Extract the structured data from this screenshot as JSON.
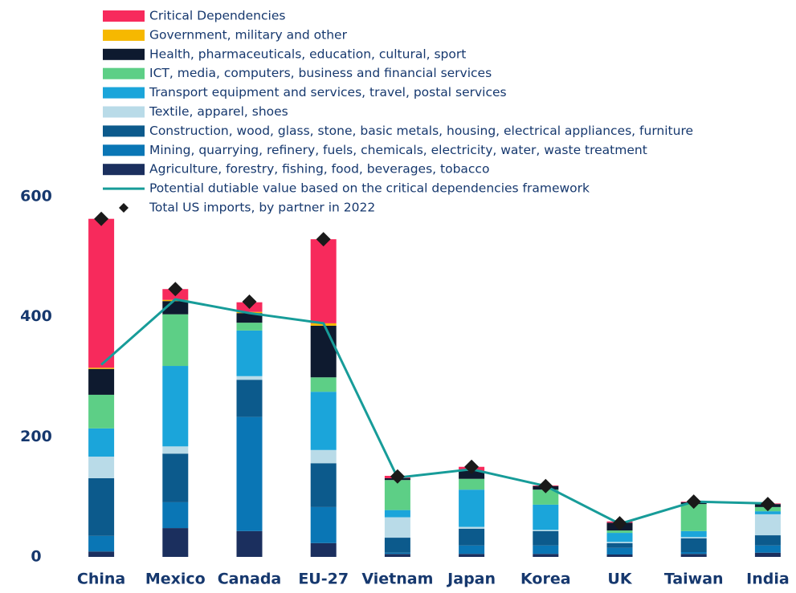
{
  "chart_data": {
    "type": "bar",
    "stacked": true,
    "categories": [
      "China",
      "Mexico",
      "Canada",
      "EU-27",
      "Vietnam",
      "Japan",
      "Korea",
      "UK",
      "Taiwan",
      "India"
    ],
    "series": [
      {
        "name": "Agriculture, forestry, fishing, food, beverages, tobacco",
        "color": "#1b2f5e",
        "values": [
          9,
          48,
          43,
          23,
          5,
          5,
          5,
          4,
          5,
          7
        ]
      },
      {
        "name": "Mining, quarrying, refinery, fuels, chemicals, electricity, water, waste treatment",
        "color": "#0a76b5",
        "values": [
          26,
          43,
          190,
          60,
          2,
          14,
          14,
          11,
          3,
          12
        ]
      },
      {
        "name": "Construction, wood, glass, stone, basic metals, housing, electrical appliances, furniture",
        "color": "#0c5a8c",
        "values": [
          96,
          81,
          62,
          73,
          25,
          28,
          24,
          8,
          23,
          17
        ]
      },
      {
        "name": "Textile, apparel, shoes",
        "color": "#b9dbe8",
        "values": [
          36,
          12,
          6,
          22,
          34,
          3,
          2,
          2,
          2,
          35
        ]
      },
      {
        "name": "Transport equipment and services, travel, postal services",
        "color": "#1ba5da",
        "values": [
          47,
          134,
          76,
          97,
          12,
          62,
          42,
          15,
          10,
          5
        ]
      },
      {
        "name": "ICT, media, computers, business and financial services",
        "color": "#5dcf86",
        "values": [
          56,
          86,
          13,
          24,
          50,
          18,
          25,
          4,
          45,
          7
        ]
      },
      {
        "name": "Health, pharmaceuticals, education, cultural, sport",
        "color": "#0e1a2f",
        "values": [
          43,
          22,
          16,
          86,
          3,
          13,
          6,
          13,
          3,
          5
        ]
      },
      {
        "name": "Government, military and other",
        "color": "#f6b800",
        "values": [
          2,
          2,
          2,
          4,
          0,
          0,
          0,
          0,
          0,
          0
        ]
      },
      {
        "name": "Critical Dependencies",
        "color": "#f72a5c",
        "values": [
          248,
          18,
          16,
          140,
          4,
          7,
          1,
          2,
          1,
          1
        ]
      },
      {
        "name": "Potential dutiable value based on the critical dependencies framework",
        "type": "line",
        "color": "#179c99",
        "values": [
          320,
          429,
          406,
          389,
          132,
          146,
          118,
          55,
          92,
          89
        ]
      },
      {
        "name": "Total US imports, by partner in 2022",
        "type": "scatter",
        "color": "#1a1a1a",
        "values": [
          563,
          446,
          425,
          529,
          134,
          150,
          118,
          56,
          92,
          88
        ]
      }
    ],
    "ylim": [
      0,
      600
    ],
    "yticks": [
      0,
      200,
      400,
      600
    ],
    "grid": false
  }
}
